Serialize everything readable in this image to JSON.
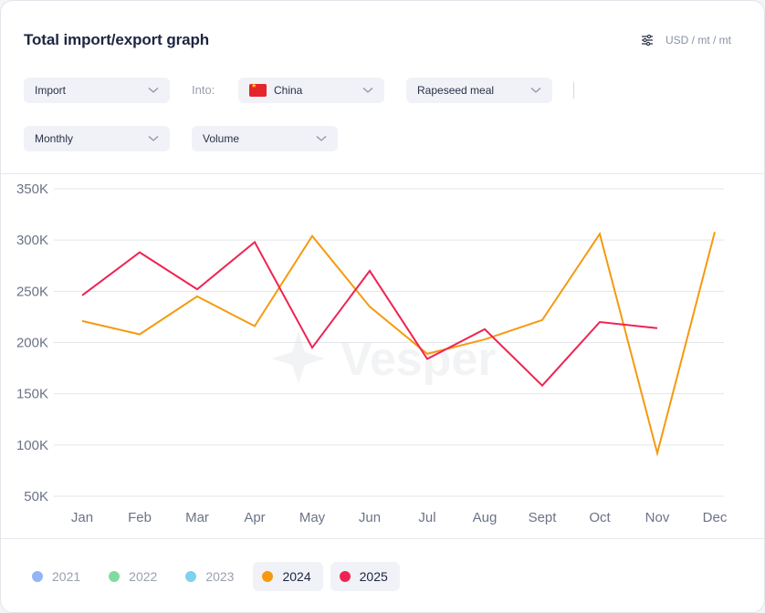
{
  "header": {
    "title": "Total import/export graph",
    "units_label": "USD / mt / mt",
    "units_icon": "sliders-icon"
  },
  "filters": {
    "flow": "Import",
    "into_label": "Into:",
    "country": "China",
    "country_flag": "china-flag",
    "product": "Rapeseed meal",
    "period": "Monthly",
    "metric": "Volume"
  },
  "legend": [
    {
      "label": "2021",
      "color": "#93b4f5",
      "active": false
    },
    {
      "label": "2022",
      "color": "#7fdb9e",
      "active": false
    },
    {
      "label": "2023",
      "color": "#7fd1f2",
      "active": false
    },
    {
      "label": "2024",
      "color": "#f59a0e",
      "active": true
    },
    {
      "label": "2025",
      "color": "#ef2352",
      "active": true
    }
  ],
  "watermark": "Vesper",
  "chart_data": {
    "type": "line",
    "title": "Total import/export graph",
    "xlabel": "",
    "ylabel": "",
    "categories": [
      "Jan",
      "Feb",
      "Mar",
      "Apr",
      "May",
      "Jun",
      "Jul",
      "Aug",
      "Sept",
      "Oct",
      "Nov",
      "Dec"
    ],
    "y_ticks": [
      50000,
      100000,
      150000,
      200000,
      250000,
      300000,
      350000
    ],
    "y_tick_labels": [
      "50K",
      "100K",
      "150K",
      "200K",
      "250K",
      "300K",
      "350K"
    ],
    "ylim": [
      50000,
      350000
    ],
    "grid": true,
    "legend_position": "bottom-left",
    "series": [
      {
        "name": "2024",
        "color": "#f59a0e",
        "values": [
          221000,
          208000,
          245000,
          216000,
          304000,
          235000,
          189000,
          203000,
          222000,
          306000,
          92000,
          308000
        ]
      },
      {
        "name": "2025",
        "color": "#ef2352",
        "values": [
          246000,
          288000,
          252000,
          298000,
          195000,
          270000,
          184000,
          213000,
          158000,
          220000,
          214000,
          null
        ]
      }
    ]
  }
}
